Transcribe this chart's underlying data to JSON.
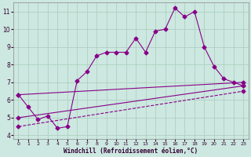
{
  "title": "",
  "xlabel": "Windchill (Refroidissement éolien,°C)",
  "ylabel": "",
  "bg_color": "#cce8e0",
  "line_color": "#880088",
  "grid_color": "#aaccbb",
  "xlim": [
    -0.5,
    23.5
  ],
  "ylim": [
    3.8,
    11.5
  ],
  "xticks": [
    0,
    1,
    2,
    3,
    4,
    5,
    6,
    7,
    8,
    9,
    10,
    11,
    12,
    13,
    14,
    15,
    16,
    17,
    18,
    19,
    20,
    21,
    22,
    23
  ],
  "yticks": [
    4,
    5,
    6,
    7,
    8,
    9,
    10,
    11
  ],
  "lines": [
    {
      "x": [
        0,
        1,
        2,
        3,
        4,
        5,
        6,
        7,
        8,
        9,
        10,
        11,
        12,
        13,
        14,
        15,
        16,
        17,
        18,
        19,
        20,
        21,
        22,
        23
      ],
      "y": [
        6.3,
        5.6,
        4.9,
        5.1,
        4.4,
        4.5,
        7.1,
        7.6,
        8.5,
        8.7,
        8.7,
        8.7,
        9.5,
        8.7,
        9.9,
        10.0,
        11.2,
        10.7,
        11.0,
        9.0,
        7.9,
        7.2,
        7.0,
        6.8
      ],
      "style": "-",
      "marker": "D",
      "markersize": 2.5,
      "linewidth": 0.8
    },
    {
      "x": [
        0,
        23
      ],
      "y": [
        6.3,
        7.0
      ],
      "style": "-",
      "marker": "D",
      "markersize": 2.5,
      "linewidth": 0.8
    },
    {
      "x": [
        0,
        23
      ],
      "y": [
        5.0,
        6.8
      ],
      "style": "-",
      "marker": "D",
      "markersize": 2.5,
      "linewidth": 0.8
    },
    {
      "x": [
        0,
        23
      ],
      "y": [
        4.5,
        6.5
      ],
      "style": "--",
      "marker": "D",
      "markersize": 2.5,
      "linewidth": 0.8
    }
  ]
}
